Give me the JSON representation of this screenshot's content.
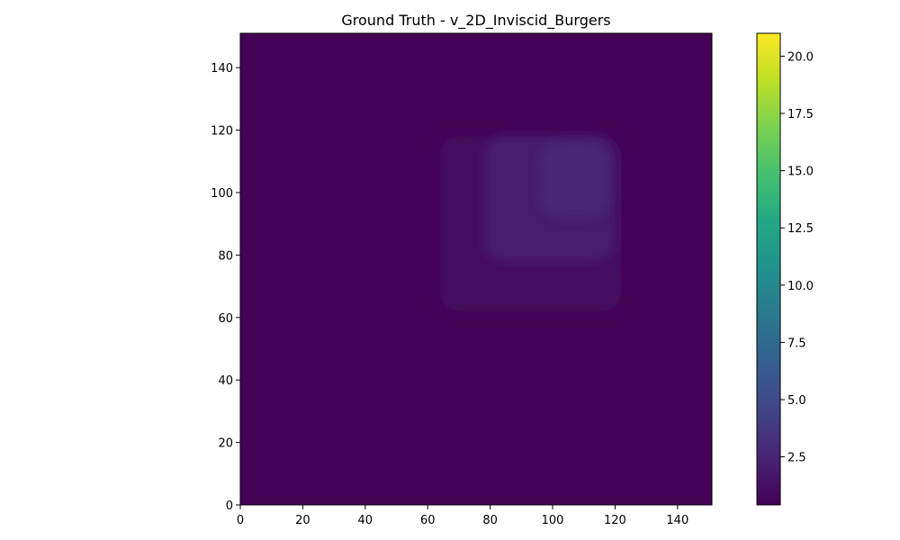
{
  "chart_data": {
    "type": "heatmap",
    "title": "Ground Truth - v_2D_Inviscid_Burgers",
    "xlabel": "",
    "ylabel": "",
    "xlim": [
      0,
      151
    ],
    "ylim": [
      0,
      151
    ],
    "x_ticks": [
      "0",
      "20",
      "40",
      "60",
      "80",
      "100",
      "120",
      "140"
    ],
    "y_ticks": [
      "0",
      "20",
      "40",
      "60",
      "80",
      "100",
      "120",
      "140"
    ],
    "colormap": "viridis",
    "color_range": [
      0.4,
      21.0
    ],
    "colorbar_ticks": [
      "2.5",
      "5.0",
      "7.5",
      "10.0",
      "12.5",
      "15.0",
      "17.5",
      "20.0"
    ],
    "background_value": 0.5,
    "features": [
      {
        "shape": "rounded-square",
        "x_range": [
          64,
          122
        ],
        "y_range": [
          62,
          118
        ],
        "value": 1.0
      },
      {
        "shape": "rounded-square",
        "x_range": [
          78,
          120
        ],
        "y_range": [
          78,
          118
        ],
        "value": 2.0
      },
      {
        "shape": "rounded-square",
        "x_range": [
          96,
          118
        ],
        "y_range": [
          92,
          116
        ],
        "value": 2.6
      }
    ]
  }
}
